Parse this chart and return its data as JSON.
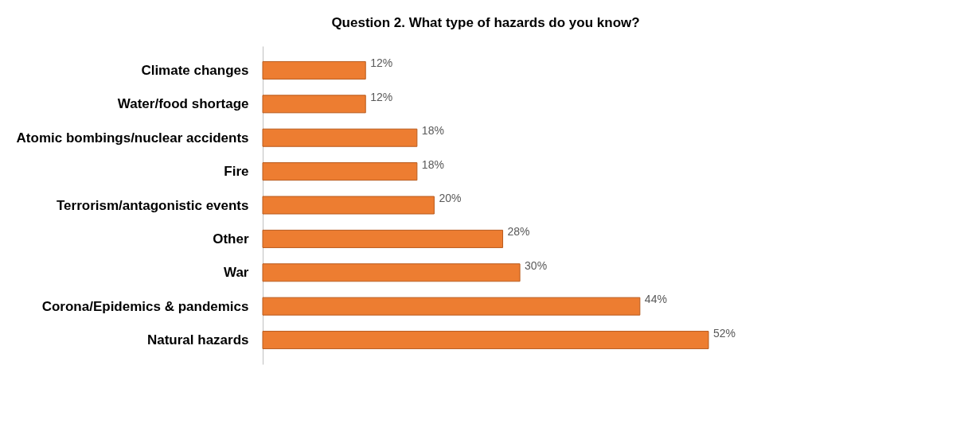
{
  "chart_data": {
    "type": "bar",
    "orientation": "horizontal",
    "title": "Question 2. What type of hazards do you know?",
    "categories": [
      "Climate changes",
      "Water/food shortage",
      "Atomic bombings/nuclear accidents",
      "Fire",
      "Terrorism/antagonistic events",
      "Other",
      "War",
      "Corona/Epidemics & pandemics",
      "Natural hazards"
    ],
    "values": [
      12,
      12,
      18,
      18,
      20,
      28,
      30,
      44,
      52
    ],
    "value_labels": [
      "12%",
      "12%",
      "18%",
      "18%",
      "20%",
      "28%",
      "30%",
      "44%",
      "52%"
    ],
    "color": "#ed7d31",
    "grid": false
  }
}
